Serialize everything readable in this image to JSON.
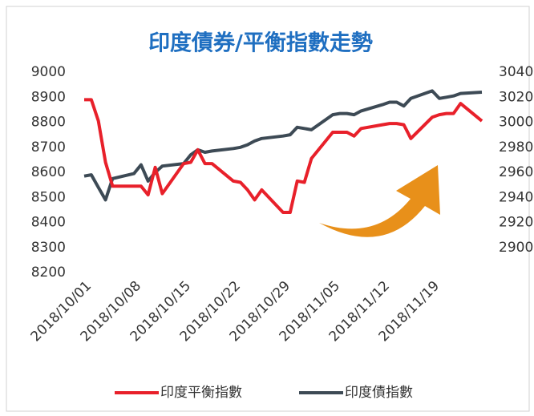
{
  "chart_data": {
    "type": "line",
    "title": "印度債券/平衡指數走勢",
    "x": [
      "2018/10/01",
      "2018/10/02",
      "2018/10/03",
      "2018/10/04",
      "2018/10/05",
      "2018/10/08",
      "2018/10/09",
      "2018/10/10",
      "2018/10/11",
      "2018/10/12",
      "2018/10/15",
      "2018/10/16",
      "2018/10/17",
      "2018/10/18",
      "2018/10/19",
      "2018/10/22",
      "2018/10/23",
      "2018/10/24",
      "2018/10/25",
      "2018/10/26",
      "2018/10/29",
      "2018/10/30",
      "2018/10/31",
      "2018/11/01",
      "2018/11/02",
      "2018/11/05",
      "2018/11/06",
      "2018/11/07",
      "2018/11/08",
      "2018/11/09",
      "2018/11/12",
      "2018/11/13",
      "2018/11/14",
      "2018/11/15",
      "2018/11/16",
      "2018/11/19",
      "2018/11/20",
      "2018/11/21",
      "2018/11/22",
      "2018/11/23",
      "2018/11/26"
    ],
    "series": [
      {
        "name": "印度平衡指數",
        "color": "#e8202a",
        "values": [
          8890,
          8890,
          8805,
          8640,
          8545,
          8545,
          8545,
          8510,
          8620,
          8515,
          8635,
          8640,
          8690,
          8635,
          8635,
          8565,
          8560,
          8530,
          8490,
          8530,
          8440,
          8440,
          8565,
          8560,
          8655,
          8760,
          8760,
          8760,
          8745,
          8775,
          8790,
          8795,
          8795,
          8790,
          8735,
          8820,
          8830,
          8835,
          8835,
          8875,
          8805
        ]
      },
      {
        "name": "印度債指數",
        "color": "#3d4a55",
        "axis": "y2",
        "values": [
          2957,
          2958,
          2948,
          2938,
          2955,
          2959,
          2966,
          2953,
          2960,
          2965,
          2967,
          2974,
          2978,
          2976,
          2977,
          2979,
          2980,
          2982,
          2985,
          2987,
          2989,
          2990,
          2996,
          2995,
          2994,
          3006,
          3007,
          3007,
          3006,
          3009,
          3014,
          3016,
          3016,
          3013,
          3019,
          3025,
          3019,
          3020,
          3021,
          3023,
          3024
        ]
      }
    ],
    "xlim": [
      "2018/10/01",
      "2018/11/26"
    ],
    "xticks": [
      "2018/10/01",
      "2018/10/08",
      "2018/10/15",
      "2018/10/22",
      "2018/10/29",
      "2018/11/05",
      "2018/11/12",
      "2018/11/19"
    ],
    "ylim": [
      8200,
      9000
    ],
    "yticks": [
      8200,
      8300,
      8400,
      8500,
      8600,
      8700,
      8800,
      8900,
      9000
    ],
    "y2lim": [
      2880,
      3040
    ],
    "y2ticks": [
      2900,
      2920,
      2940,
      2960,
      2980,
      3000,
      3020,
      3040
    ],
    "grid": false,
    "legend": "bottom"
  }
}
